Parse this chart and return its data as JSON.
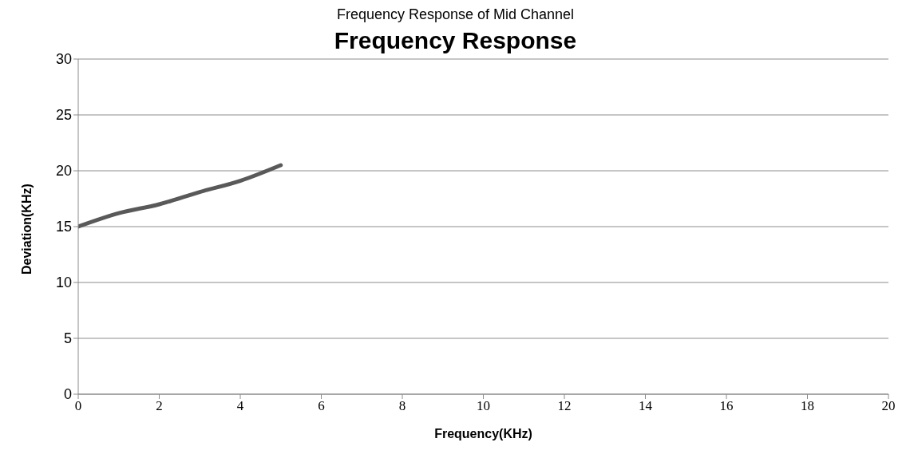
{
  "chart_data": {
    "type": "line",
    "title": "Frequency Response of Mid Channel",
    "subtitle": "Frequency Response",
    "xlabel": "Frequency(KHz)",
    "ylabel": "Deviation(KHz)",
    "x": [
      0,
      1,
      2,
      3,
      4,
      5
    ],
    "series": [
      {
        "color": "#595959",
        "values": [
          15,
          16.2,
          17,
          18.1,
          19.1,
          20.5
        ]
      }
    ],
    "xlim": [
      0,
      20
    ],
    "xticks": [
      0,
      2,
      4,
      6,
      8,
      10,
      12,
      14,
      16,
      18,
      20
    ],
    "ylim": [
      0,
      30
    ],
    "yticks": [
      0,
      5,
      10,
      15,
      20,
      25,
      30
    ],
    "grid": "y",
    "legend": false,
    "marker": "none",
    "line_style": "solid"
  }
}
